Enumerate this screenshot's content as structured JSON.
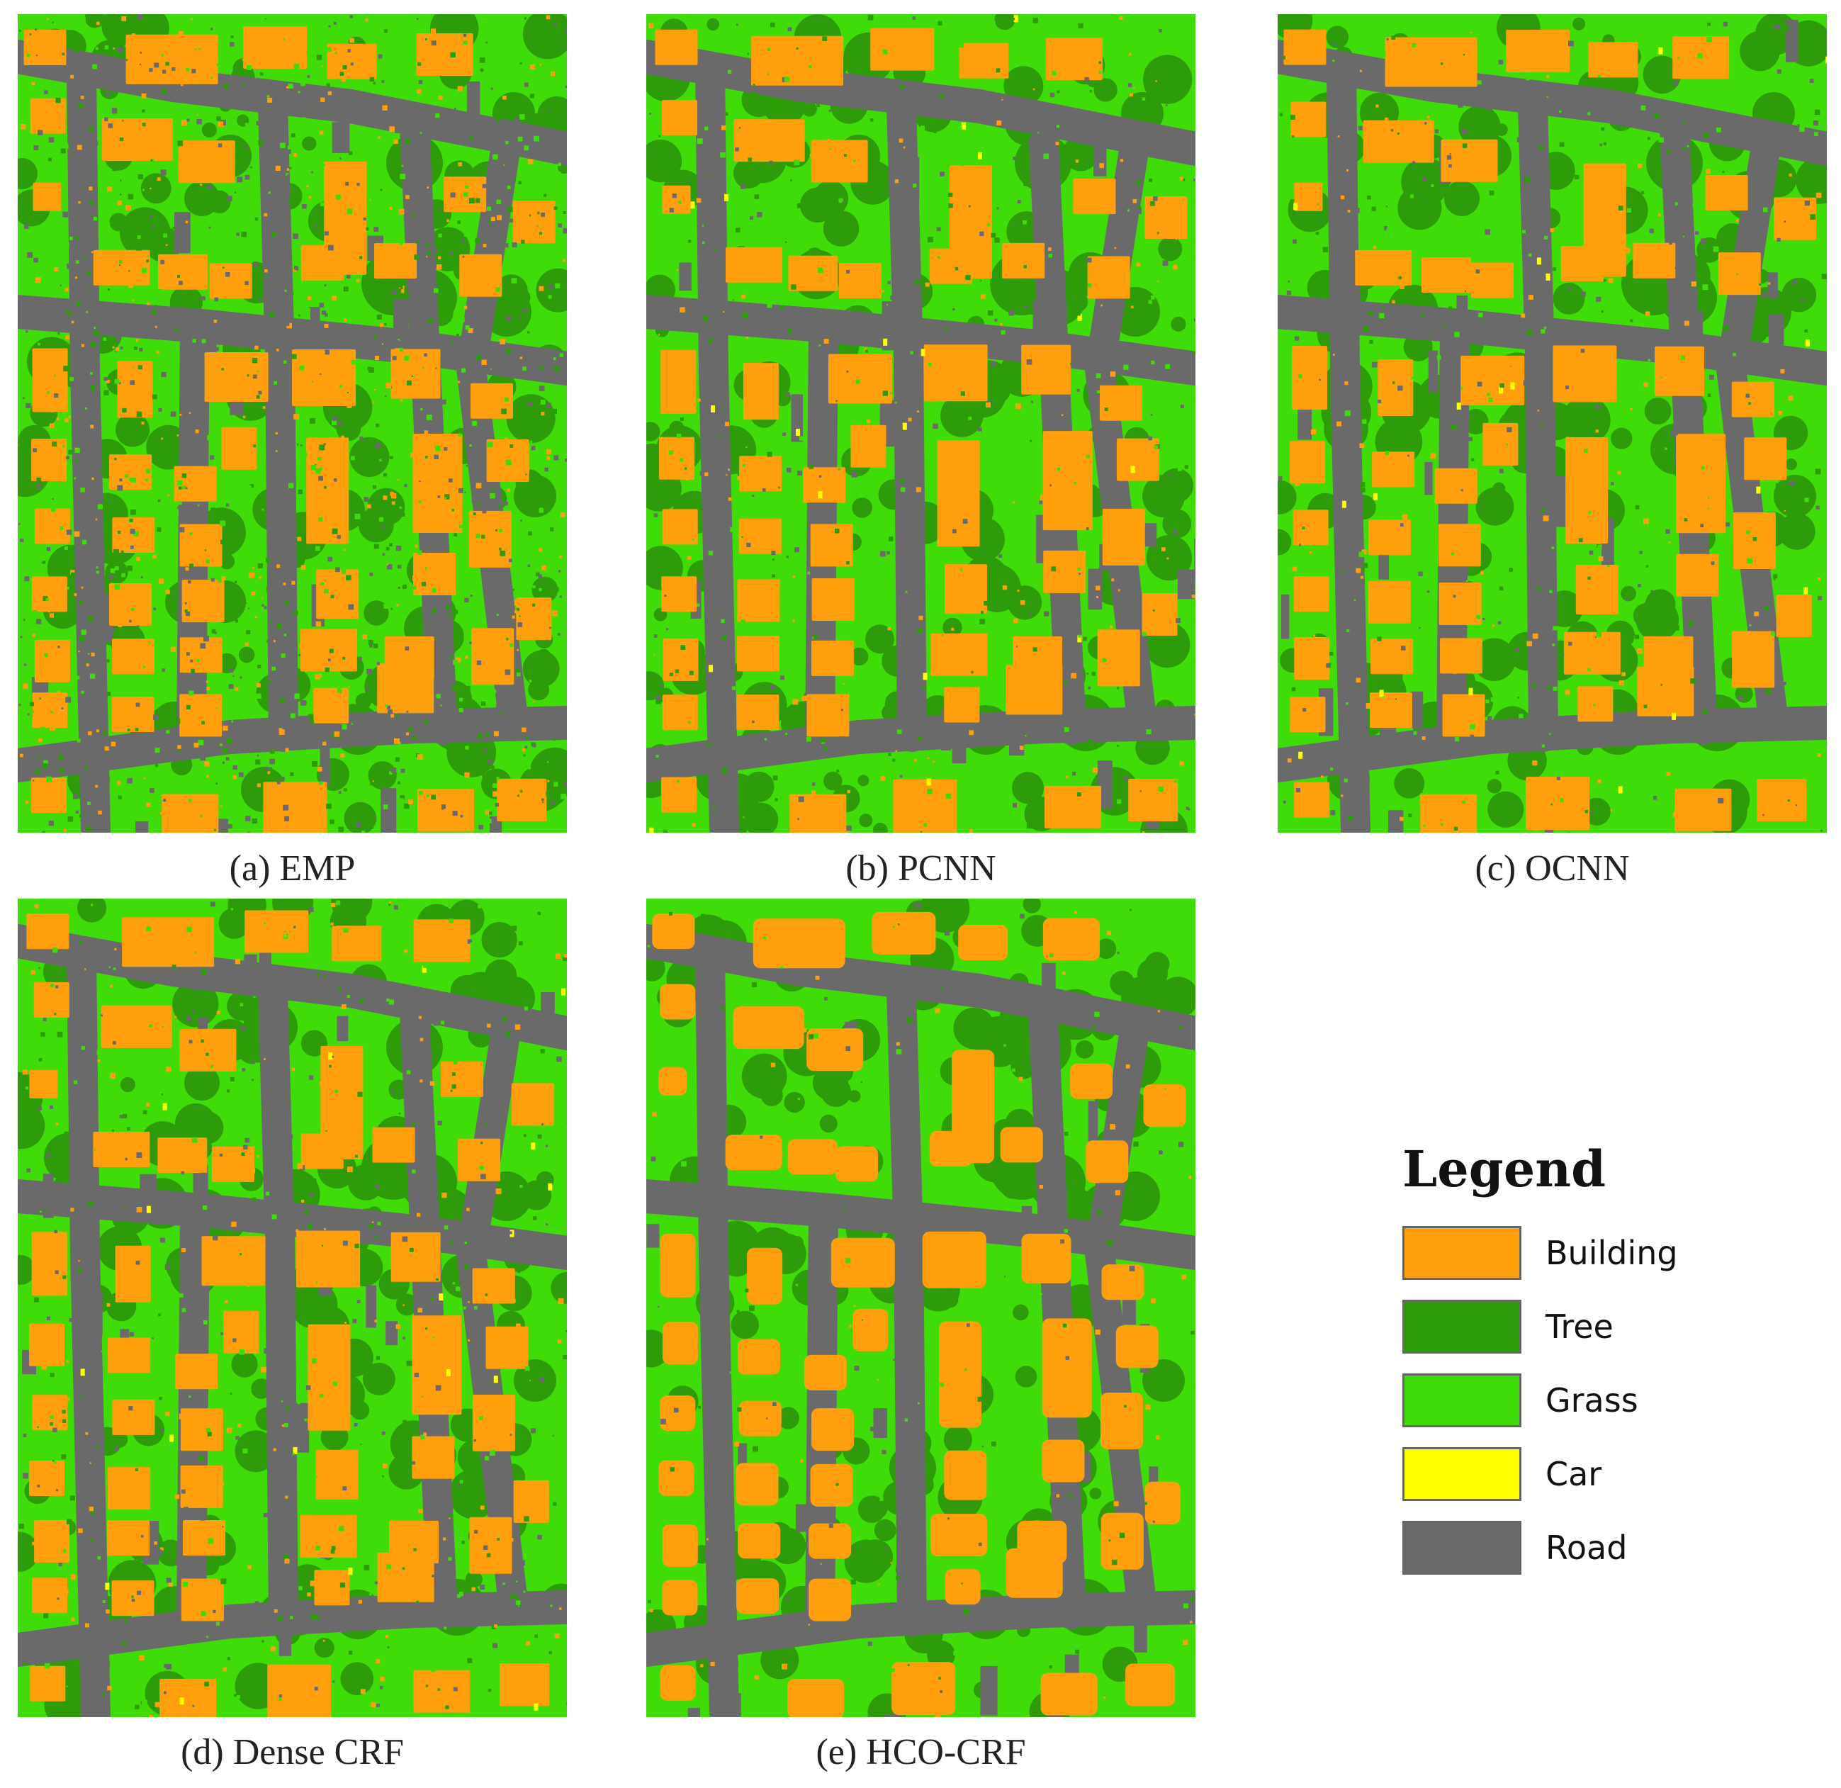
{
  "colors": {
    "building": "#ff9f0d",
    "tree": "#2d9b0a",
    "grass": "#3fdc0a",
    "car": "#ffff00",
    "road": "#6a6a6a"
  },
  "panels": [
    {
      "id": "a",
      "caption": "(a) EMP",
      "noise": 0.55
    },
    {
      "id": "b",
      "caption": "(b) PCNN",
      "noise": 0.22
    },
    {
      "id": "c",
      "caption": "(c) OCNN",
      "noise": 0.2
    },
    {
      "id": "d",
      "caption": "(d) Dense CRF",
      "noise": 0.25
    },
    {
      "id": "e",
      "caption": "(e) HCO-CRF",
      "noise": 0.08
    }
  ],
  "legend": {
    "title": "Legend",
    "items": [
      {
        "label": "Building",
        "color": "#ff9f0d"
      },
      {
        "label": "Tree",
        "color": "#2d9b0a"
      },
      {
        "label": "Grass",
        "color": "#3fdc0a"
      },
      {
        "label": "Car",
        "color": "#ffff00"
      },
      {
        "label": "Road",
        "color": "#6a6a6a"
      }
    ]
  }
}
